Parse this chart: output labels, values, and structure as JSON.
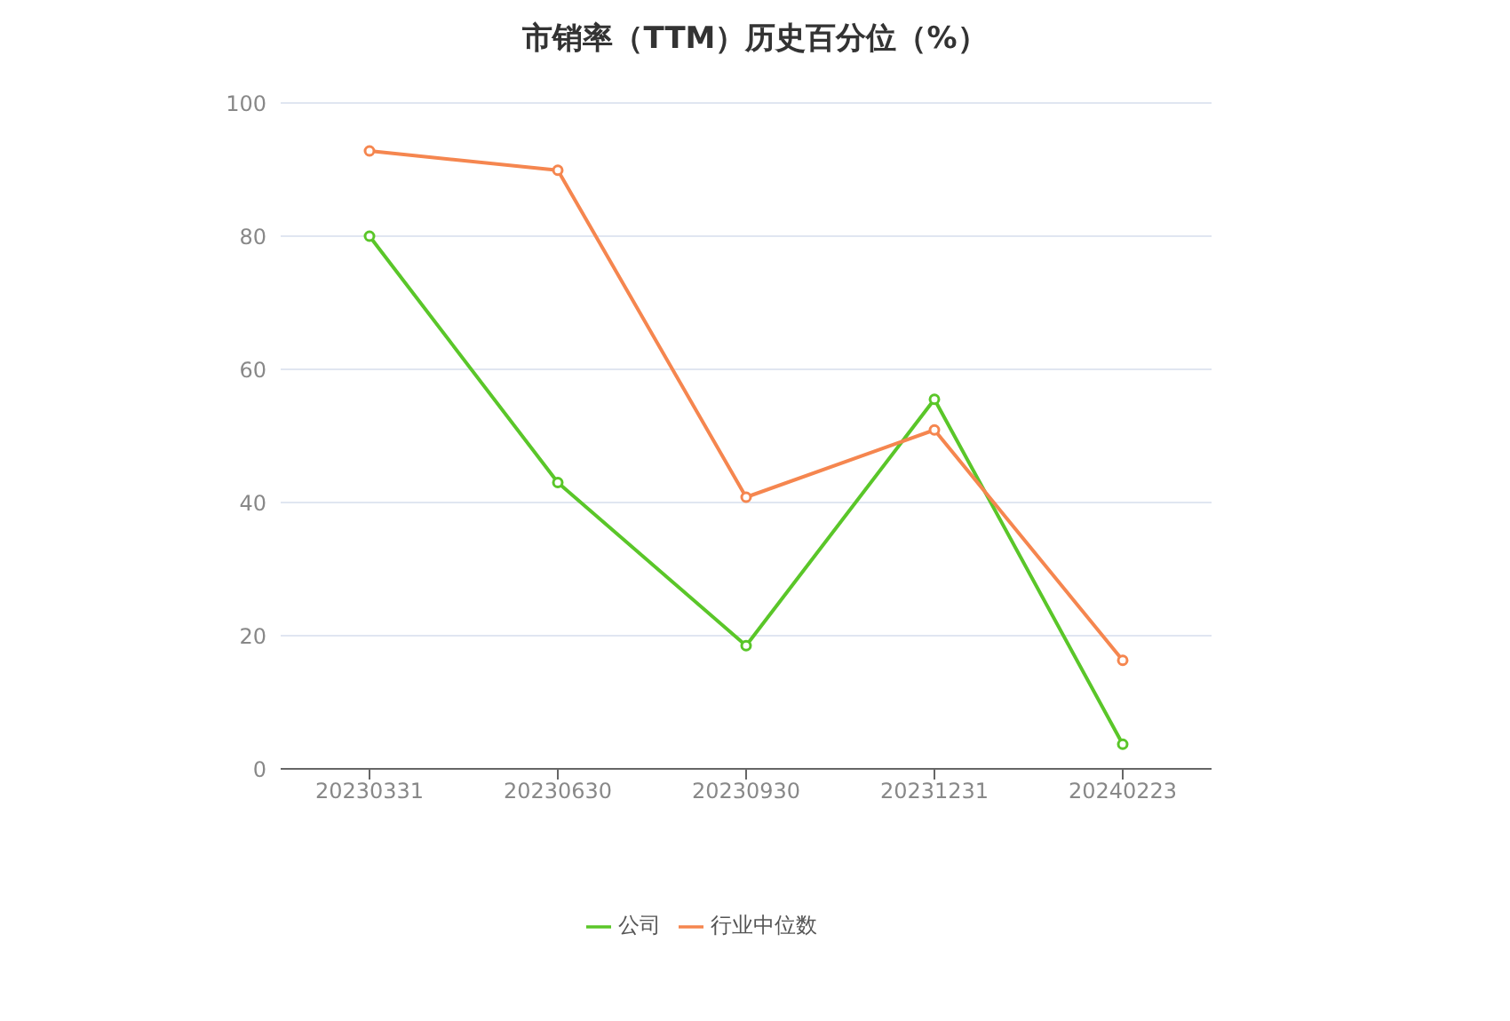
{
  "chart_data": {
    "type": "line",
    "title": "市销率（TTM）历史百分位（%）",
    "categories": [
      "20230331",
      "20230630",
      "20230930",
      "20231231",
      "20240223"
    ],
    "series": [
      {
        "name": "公司",
        "color": "#5ac629",
        "values": [
          80.0,
          43.0,
          18.5,
          55.5,
          3.7
        ]
      },
      {
        "name": "行业中位数",
        "color": "#f5864f",
        "values": [
          92.8,
          89.9,
          40.8,
          50.9,
          16.3
        ]
      }
    ],
    "ylim": [
      0,
      100
    ],
    "yticks": [
      0,
      20,
      40,
      60,
      80,
      100
    ],
    "grid": "y",
    "legend": "bottom",
    "marker": "circle",
    "line_style": "solid"
  }
}
